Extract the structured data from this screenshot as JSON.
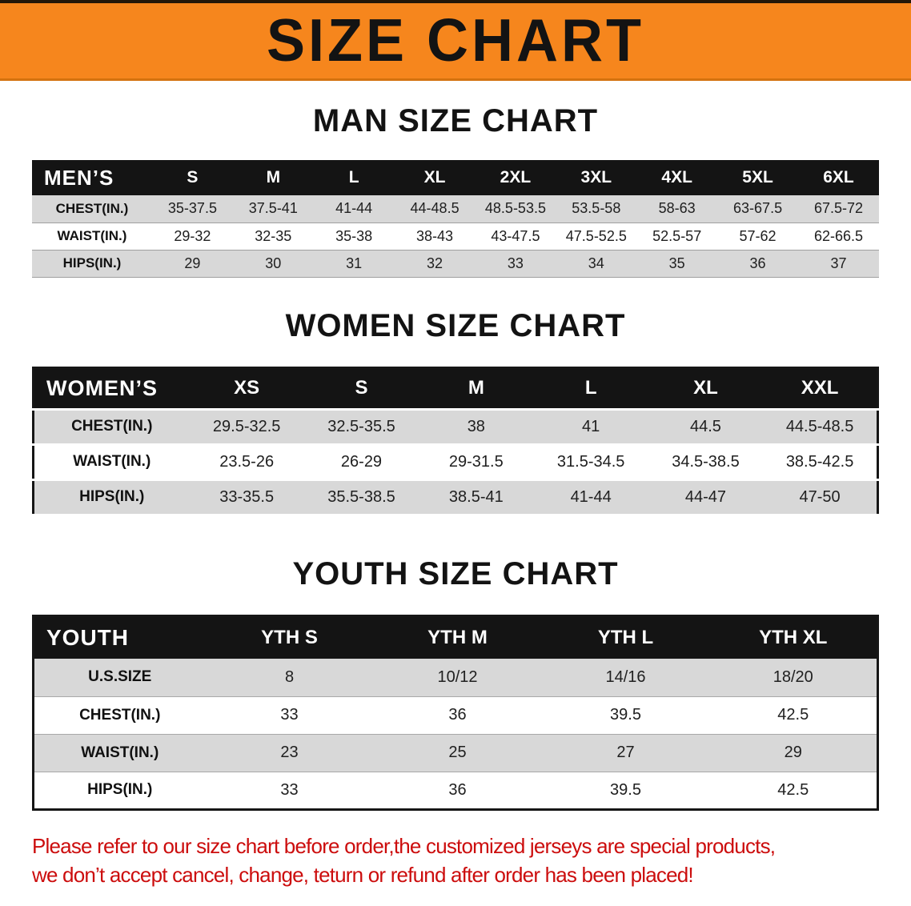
{
  "banner": {
    "title": "SIZE CHART",
    "bg_color": "#f6861d"
  },
  "colors": {
    "table_header_bg": "#141414",
    "row_shade": "#d8d8d8",
    "disclaimer_red": "#cc0d0d"
  },
  "men": {
    "heading": "MAN SIZE CHART",
    "label": "MEN’S",
    "columns": [
      "S",
      "M",
      "L",
      "XL",
      "2XL",
      "3XL",
      "4XL",
      "5XL",
      "6XL"
    ],
    "rows": [
      {
        "label": "CHEST(IN.)",
        "values": [
          "35-37.5",
          "37.5-41",
          "41-44",
          "44-48.5",
          "48.5-53.5",
          "53.5-58",
          "58-63",
          "63-67.5",
          "67.5-72"
        ]
      },
      {
        "label": "WAIST(IN.)",
        "values": [
          "29-32",
          "32-35",
          "35-38",
          "38-43",
          "43-47.5",
          "47.5-52.5",
          "52.5-57",
          "57-62",
          "62-66.5"
        ]
      },
      {
        "label": "HIPS(IN.)",
        "values": [
          "29",
          "30",
          "31",
          "32",
          "33",
          "34",
          "35",
          "36",
          "37"
        ]
      }
    ]
  },
  "women": {
    "heading": "WOMEN SIZE CHART",
    "label": "WOMEN’S",
    "columns": [
      "XS",
      "S",
      "M",
      "L",
      "XL",
      "XXL"
    ],
    "rows": [
      {
        "label": "CHEST(IN.)",
        "values": [
          "29.5-32.5",
          "32.5-35.5",
          "38",
          "41",
          "44.5",
          "44.5-48.5"
        ]
      },
      {
        "label": "WAIST(IN.)",
        "values": [
          "23.5-26",
          "26-29",
          "29-31.5",
          "31.5-34.5",
          "34.5-38.5",
          "38.5-42.5"
        ]
      },
      {
        "label": "HIPS(IN.)",
        "values": [
          "33-35.5",
          "35.5-38.5",
          "38.5-41",
          "41-44",
          "44-47",
          "47-50"
        ]
      }
    ]
  },
  "youth": {
    "heading": "YOUTH SIZE CHART",
    "label": "YOUTH",
    "columns": [
      "YTH S",
      "YTH M",
      "YTH L",
      "YTH XL"
    ],
    "rows": [
      {
        "label": "U.S.SIZE",
        "values": [
          "8",
          "10/12",
          "14/16",
          "18/20"
        ]
      },
      {
        "label": "CHEST(IN.)",
        "values": [
          "33",
          "36",
          "39.5",
          "42.5"
        ]
      },
      {
        "label": "WAIST(IN.)",
        "values": [
          "23",
          "25",
          "27",
          "29"
        ]
      },
      {
        "label": "HIPS(IN.)",
        "values": [
          "33",
          "36",
          "39.5",
          "42.5"
        ]
      }
    ]
  },
  "disclaimer": {
    "line1": "Please refer to our size chart before order,the customized jerseys are special products,",
    "line2": "we don’t accept cancel, change, teturn or refund after order has been placed!"
  }
}
